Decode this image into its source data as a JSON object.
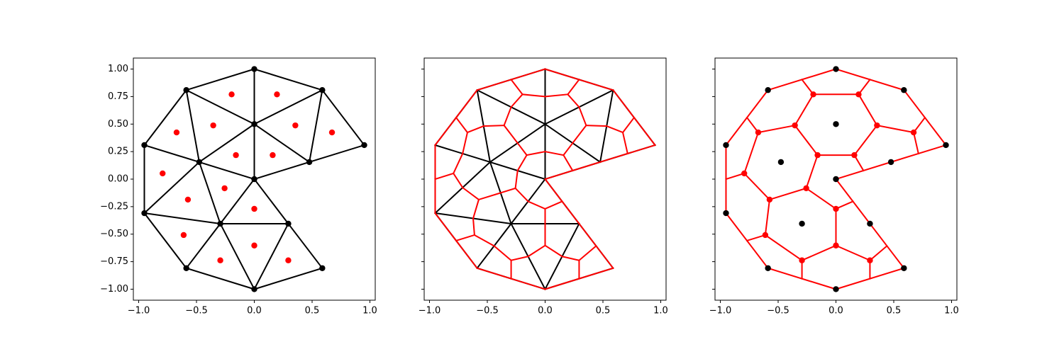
{
  "chart_data": [
    {
      "type": "triangulation",
      "x": [
        0,
        -0.588,
        0.588,
        -0.951,
        0.951,
        0,
        -0.476,
        0.476,
        0,
        -0.951,
        -0.294,
        0.294,
        -0.588,
        0.588,
        0
      ],
      "y": [
        1,
        0.809,
        0.809,
        0.309,
        0.309,
        0.5,
        0.155,
        0.155,
        0,
        -0.309,
        -0.405,
        -0.405,
        -0.809,
        -0.809,
        -1
      ],
      "triangles": [
        [
          0,
          1,
          5
        ],
        [
          0,
          2,
          5
        ],
        [
          1,
          3,
          6
        ],
        [
          1,
          5,
          6
        ],
        [
          2,
          5,
          7
        ],
        [
          2,
          4,
          7
        ],
        [
          5,
          6,
          8
        ],
        [
          5,
          7,
          8
        ],
        [
          3,
          6,
          9
        ],
        [
          6,
          8,
          10
        ],
        [
          6,
          9,
          10
        ],
        [
          8,
          10,
          11
        ],
        [
          9,
          10,
          12
        ],
        [
          10,
          12,
          14
        ],
        [
          10,
          11,
          14
        ],
        [
          11,
          13,
          14
        ]
      ],
      "centroids": {
        "x": [
          -0.196,
          0.196,
          -0.672,
          -0.355,
          0.355,
          0.672,
          -0.159,
          0.159,
          -0.793,
          -0.257,
          -0.574,
          0,
          -0.611,
          -0.294,
          0,
          0.294
        ],
        "y": [
          0.77,
          0.77,
          0.424,
          0.488,
          0.488,
          0.424,
          0.218,
          0.218,
          0.052,
          -0.083,
          -0.186,
          -0.27,
          -0.508,
          -0.738,
          -0.603,
          -0.738
        ]
      },
      "edge_color": "#000000",
      "vertex_color": "#000000",
      "centroid_color": "#ff0000",
      "xlim": [
        -1.046,
        1.046
      ],
      "ylim": [
        -1.1,
        1.1
      ],
      "xticks": [
        {
          "value": -1,
          "label": "−1.0"
        },
        {
          "value": -0.5,
          "label": "−0.5"
        },
        {
          "value": 0,
          "label": "0.0"
        },
        {
          "value": 0.5,
          "label": "0.5"
        },
        {
          "value": 1,
          "label": "1.0"
        }
      ],
      "yticks": [
        {
          "value": -1,
          "label": "−1.00"
        },
        {
          "value": -0.75,
          "label": "−0.75"
        },
        {
          "value": -0.5,
          "label": "−0.50"
        },
        {
          "value": -0.25,
          "label": "−0.25"
        },
        {
          "value": 0,
          "label": "0.00"
        },
        {
          "value": 0.25,
          "label": "0.25"
        },
        {
          "value": 0.5,
          "label": "0.50"
        },
        {
          "value": 0.75,
          "label": "0.75"
        },
        {
          "value": 1,
          "label": "1.00"
        }
      ]
    },
    {
      "type": "median-dual",
      "edge_color": "#000000",
      "dual_color": "#ff0000",
      "sharey": true,
      "xlim": [
        -1.046,
        1.046
      ],
      "ylim": [
        -1.1,
        1.1
      ],
      "xticks": [
        {
          "value": -1,
          "label": "−1.0"
        },
        {
          "value": -0.5,
          "label": "−0.5"
        },
        {
          "value": 0,
          "label": "0.0"
        },
        {
          "value": 0.5,
          "label": "0.5"
        },
        {
          "value": 1,
          "label": "1.0"
        }
      ]
    },
    {
      "type": "centroid-dual",
      "dual_color": "#ff0000",
      "vertex_color": "#000000",
      "centroid_color": "#ff0000",
      "sharey": true,
      "xlim": [
        -1.046,
        1.046
      ],
      "ylim": [
        -1.1,
        1.1
      ],
      "xticks": [
        {
          "value": -1,
          "label": "−1.0"
        },
        {
          "value": -0.5,
          "label": "−0.5"
        },
        {
          "value": 0,
          "label": "0.0"
        },
        {
          "value": 0.5,
          "label": "0.5"
        },
        {
          "value": 1,
          "label": "1.0"
        }
      ]
    }
  ]
}
